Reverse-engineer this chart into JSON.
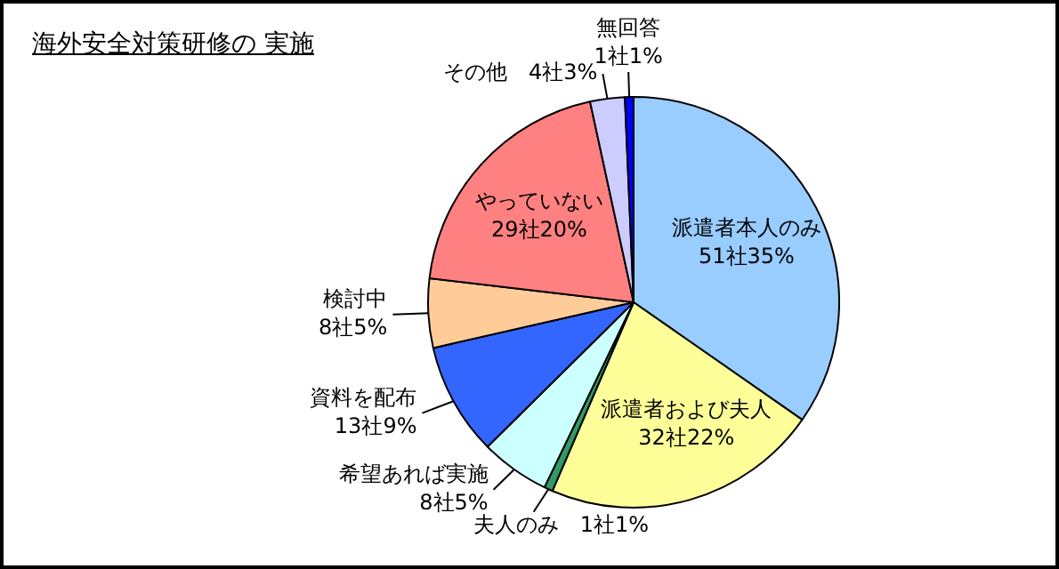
{
  "chart_data": {
    "type": "pie",
    "title": "海外安全対策研修の 実施",
    "categories": [
      "派遣者本人のみ",
      "派遣者および夫人",
      "夫人のみ",
      "希望あれば実施",
      "資料を配布",
      "検討中",
      "やっていない",
      "その他",
      "無回答"
    ],
    "values": [
      51,
      32,
      1,
      8,
      13,
      8,
      29,
      4,
      1
    ],
    "value_labels": [
      "51社35%",
      "32社22%",
      "1社1%",
      "8社5%",
      "13社9%",
      "8社5%",
      "29社20%",
      "4社3%",
      "1社1%"
    ],
    "colors": [
      "#99ccff",
      "#ffff99",
      "#339966",
      "#ccffff",
      "#3366ff",
      "#ffcc99",
      "#ff8080",
      "#ccccff",
      "#0000ff"
    ],
    "legend": false
  }
}
